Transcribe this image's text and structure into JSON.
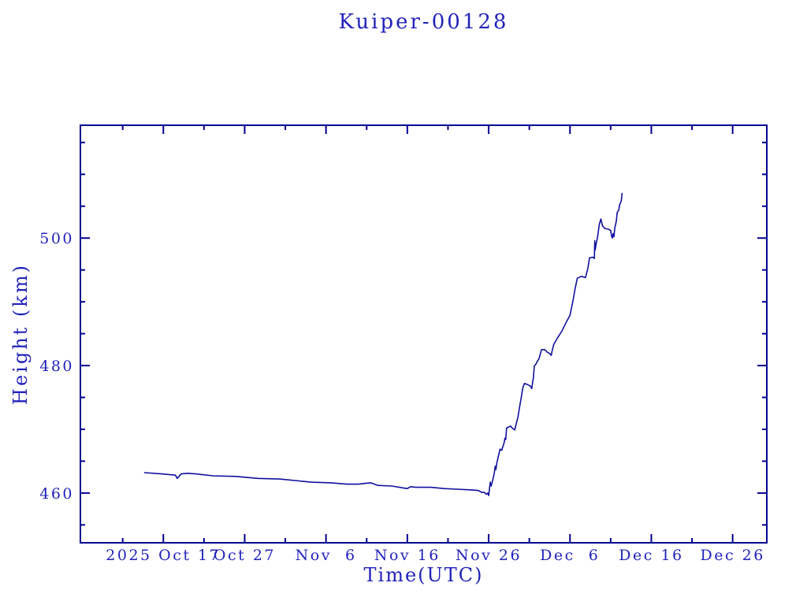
{
  "colors": {
    "text": "#2222bb",
    "frame": "#000090",
    "line": "#1010a0",
    "background": "#ffffff"
  },
  "chart_data": {
    "type": "line",
    "title": "Kuiper-00128",
    "xlabel": "Time(UTC)",
    "ylabel": "Height (km)",
    "x_unit": "days since 2025-10-17 00:00 UTC",
    "xlim": [
      -10.2,
      74.2
    ],
    "ylim": [
      452.2,
      517.7
    ],
    "grid": false,
    "legend": null,
    "x_ticks_major": [
      {
        "t": 0,
        "label": "2025 Oct 17"
      },
      {
        "t": 10,
        "label": "Oct 27"
      },
      {
        "t": 20,
        "label": "Nov  6"
      },
      {
        "t": 30,
        "label": "Nov 16"
      },
      {
        "t": 40,
        "label": "Nov 26"
      },
      {
        "t": 50,
        "label": "Dec  6"
      },
      {
        "t": 60,
        "label": "Dec 16"
      },
      {
        "t": 70,
        "label": "Dec 26"
      }
    ],
    "x_ticks_minor": [
      -5,
      5,
      15,
      25,
      35,
      45,
      55,
      65
    ],
    "y_ticks_major": [
      {
        "v": 460,
        "label": "460"
      },
      {
        "v": 480,
        "label": "480"
      },
      {
        "v": 500,
        "label": "500"
      }
    ],
    "y_ticks_minor": [
      455,
      465,
      470,
      475,
      485,
      490,
      495,
      505,
      510,
      515
    ],
    "points": [
      [
        -2.3,
        463.2
      ],
      [
        -0.2,
        463.0
      ],
      [
        1.5,
        462.8
      ],
      [
        1.7,
        462.3
      ],
      [
        2.2,
        463.0
      ],
      [
        3.0,
        463.1
      ],
      [
        4.0,
        463.0
      ],
      [
        6.1,
        462.7
      ],
      [
        9.0,
        462.6
      ],
      [
        11.6,
        462.3
      ],
      [
        14.3,
        462.2
      ],
      [
        16.7,
        461.9
      ],
      [
        18.2,
        461.7
      ],
      [
        20.6,
        461.6
      ],
      [
        22.6,
        461.4
      ],
      [
        24.0,
        461.4
      ],
      [
        24.7,
        461.5
      ],
      [
        25.5,
        461.6
      ],
      [
        26.4,
        461.2
      ],
      [
        28.1,
        461.1
      ],
      [
        29.5,
        460.8
      ],
      [
        30.0,
        460.7
      ],
      [
        30.4,
        461.0
      ],
      [
        31.0,
        460.9
      ],
      [
        32.9,
        460.9
      ],
      [
        34.5,
        460.7
      ],
      [
        36.1,
        460.6
      ],
      [
        37.7,
        460.5
      ],
      [
        38.7,
        460.4
      ],
      [
        39.2,
        460.1
      ],
      [
        39.5,
        460.1
      ],
      [
        39.7,
        459.8
      ],
      [
        39.9,
        460.0
      ],
      [
        40.0,
        459.6
      ],
      [
        40.1,
        460.7
      ],
      [
        40.2,
        461.7
      ],
      [
        40.3,
        461.1
      ],
      [
        40.5,
        462.0
      ],
      [
        40.7,
        463.2
      ],
      [
        40.8,
        464.2
      ],
      [
        40.9,
        463.7
      ],
      [
        41.0,
        464.7
      ],
      [
        41.4,
        466.9
      ],
      [
        41.6,
        466.7
      ],
      [
        41.9,
        467.9
      ],
      [
        42.0,
        468.6
      ],
      [
        42.1,
        468.4
      ],
      [
        42.2,
        470.2
      ],
      [
        42.7,
        470.5
      ],
      [
        42.9,
        470.2
      ],
      [
        43.2,
        469.9
      ],
      [
        43.6,
        471.9
      ],
      [
        43.8,
        473.5
      ],
      [
        44.0,
        474.9
      ],
      [
        44.2,
        476.5
      ],
      [
        44.4,
        477.2
      ],
      [
        44.8,
        477.0
      ],
      [
        45.1,
        476.8
      ],
      [
        45.3,
        476.4
      ],
      [
        45.4,
        477.4
      ],
      [
        45.5,
        478.0
      ],
      [
        45.6,
        479.9
      ],
      [
        45.8,
        480.2
      ],
      [
        46.0,
        480.7
      ],
      [
        46.2,
        481.1
      ],
      [
        46.5,
        482.5
      ],
      [
        46.9,
        482.5
      ],
      [
        47.2,
        482.1
      ],
      [
        47.5,
        481.9
      ],
      [
        47.7,
        481.6
      ],
      [
        47.8,
        482.3
      ],
      [
        48.0,
        483.3
      ],
      [
        48.4,
        484.2
      ],
      [
        49.0,
        485.4
      ],
      [
        49.5,
        486.7
      ],
      [
        50.0,
        487.9
      ],
      [
        50.2,
        489.1
      ],
      [
        50.4,
        490.4
      ],
      [
        50.6,
        491.9
      ],
      [
        50.9,
        493.7
      ],
      [
        51.4,
        494.0
      ],
      [
        51.9,
        493.8
      ],
      [
        52.2,
        495.3
      ],
      [
        52.4,
        496.9
      ],
      [
        52.8,
        497.0
      ],
      [
        53.0,
        496.8
      ],
      [
        53.05,
        499.6
      ],
      [
        53.1,
        498.1
      ],
      [
        53.2,
        499.0
      ],
      [
        53.4,
        500.2
      ],
      [
        53.6,
        502.1
      ],
      [
        53.8,
        503.0
      ],
      [
        54.0,
        501.9
      ],
      [
        54.3,
        501.5
      ],
      [
        54.7,
        501.4
      ],
      [
        55.0,
        501.2
      ],
      [
        55.1,
        500.4
      ],
      [
        55.2,
        500.0
      ],
      [
        55.3,
        500.7
      ],
      [
        55.4,
        500.2
      ],
      [
        55.5,
        501.5
      ],
      [
        55.7,
        502.7
      ],
      [
        55.8,
        504.0
      ],
      [
        56.0,
        504.4
      ],
      [
        56.1,
        505.2
      ],
      [
        56.3,
        505.8
      ],
      [
        56.4,
        507.0
      ]
    ]
  }
}
